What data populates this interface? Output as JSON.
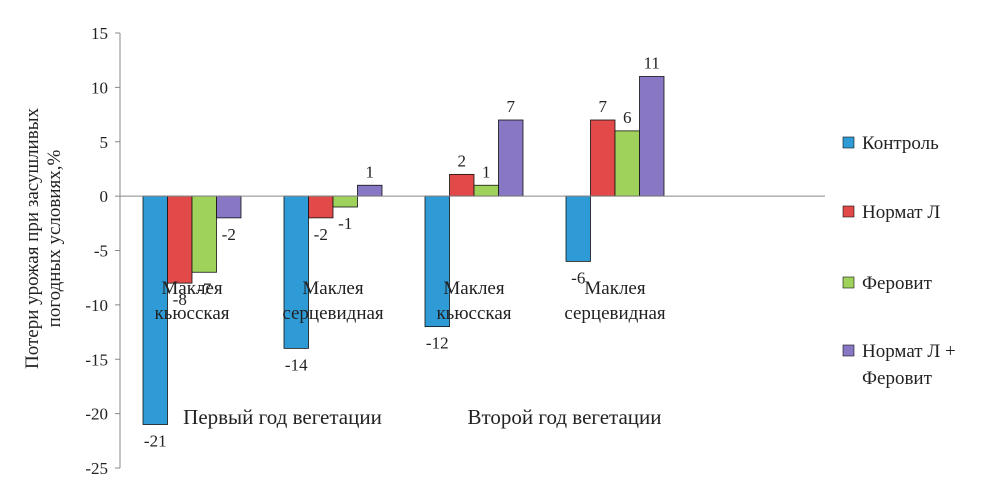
{
  "chart_data": {
    "type": "bar",
    "ylabel": [
      "Потери урожая при засушливых",
      "погодных условиях,%"
    ],
    "ylim": [
      -25,
      15
    ],
    "yticks": [
      15,
      10,
      5,
      0,
      -5,
      -10,
      -15,
      -20,
      -25
    ],
    "grid": false,
    "legend_position": "right",
    "categories": [
      [
        "Маклея",
        "кьюсская"
      ],
      [
        "Маклея",
        "серцевидная"
      ],
      [
        "Маклея",
        "кьюсская"
      ],
      [
        "Маклея",
        "серцевидная"
      ]
    ],
    "groups": [
      {
        "label": "Первый год вегетации",
        "categories": [
          0,
          1
        ]
      },
      {
        "label": "Второй год вегетации",
        "categories": [
          2,
          3
        ]
      }
    ],
    "series": [
      {
        "name": "Контроль",
        "color": "#2e9bd6",
        "values": [
          -21,
          -14,
          -12,
          -6
        ]
      },
      {
        "name": "Нормат Л",
        "color": "#e24a4a",
        "values": [
          -8,
          -2,
          2,
          7
        ]
      },
      {
        "name": "Феровит",
        "color": "#9fd25a",
        "values": [
          -7,
          -1,
          1,
          6
        ]
      },
      {
        "name": [
          "Нормат Л +",
          "Феровит"
        ],
        "color": "#8877c4",
        "values": [
          -2,
          1,
          7,
          11
        ]
      }
    ]
  }
}
